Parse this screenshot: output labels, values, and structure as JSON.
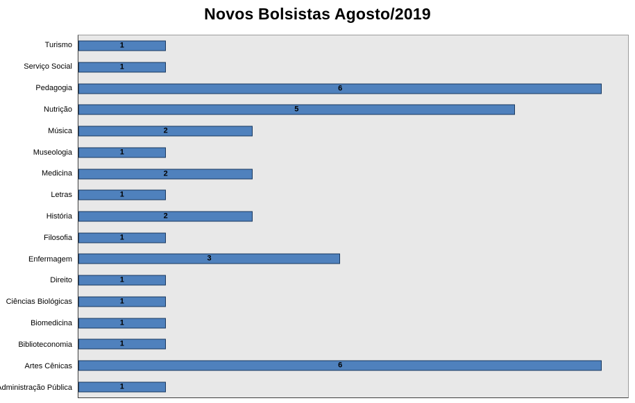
{
  "chart_data": {
    "type": "bar",
    "orientation": "horizontal",
    "title": "Novos Bolsistas Agosto/2019",
    "categories": [
      "Turismo",
      "Serviço Social",
      "Pedagogia",
      "Nutrição",
      "Música",
      "Museologia",
      "Medicina",
      "Letras",
      "História",
      "Filosofia",
      "Enfermagem",
      "Direito",
      "Ciências Biológicas",
      "Biomedicina",
      "Biblioteconomia",
      "Artes Cênicas",
      "Administração Pública"
    ],
    "values": [
      1,
      1,
      6,
      5,
      2,
      1,
      2,
      1,
      2,
      1,
      3,
      1,
      1,
      1,
      1,
      6,
      1
    ],
    "xlabel": "",
    "ylabel": "",
    "xlim": [
      0,
      6.3
    ],
    "grid": false,
    "legend": false,
    "value_labels": "centered-inside-bars",
    "colors": {
      "bar_fill": "#4F81BD",
      "bar_border": "#17375E",
      "plot_background": "#E8E8E8",
      "value_label": "#000000",
      "title_text": "#000000"
    }
  }
}
